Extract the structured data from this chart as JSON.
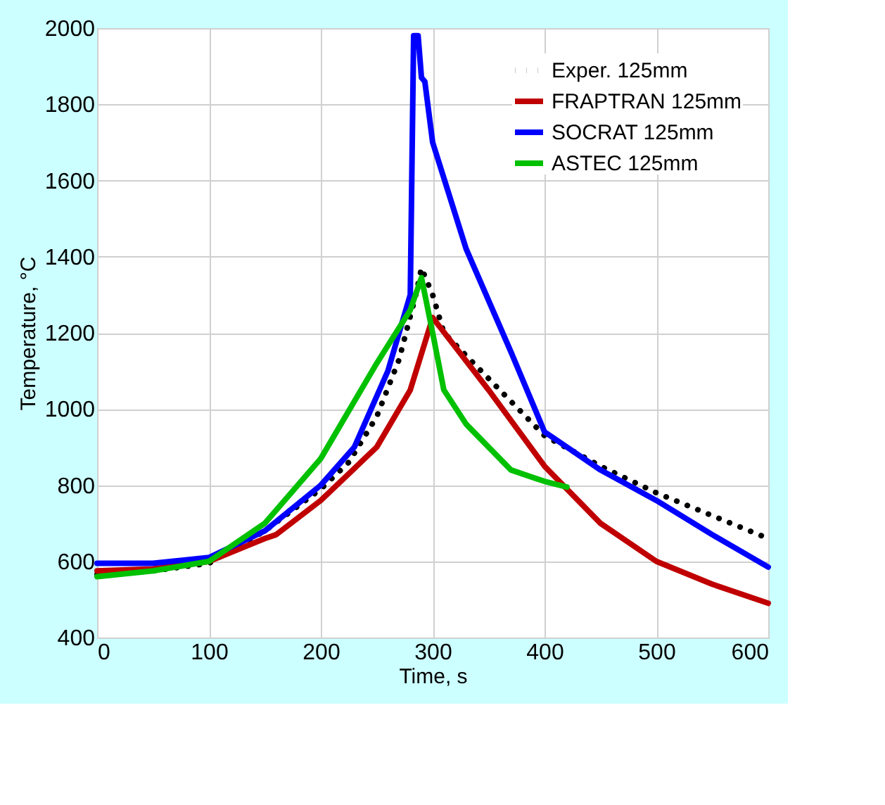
{
  "chart_data": {
    "type": "line",
    "xlabel": "Time, s",
    "ylabel": "Temperature, °C",
    "xlim": [
      0,
      600
    ],
    "ylim": [
      400,
      2000
    ],
    "xticks": [
      0,
      100,
      200,
      300,
      400,
      500,
      600
    ],
    "yticks": [
      400,
      600,
      800,
      1000,
      1200,
      1400,
      1600,
      1800,
      2000
    ],
    "grid": true,
    "legend": "top right",
    "series": [
      {
        "name": "Exper. 125mm",
        "color": "#000000",
        "line_style": "dotted",
        "x": [
          0,
          50,
          100,
          150,
          200,
          225,
          250,
          270,
          285,
          290,
          300,
          310,
          350,
          400,
          450,
          500,
          550,
          600
        ],
        "values": [
          565,
          575,
          595,
          680,
          790,
          860,
          980,
          1130,
          1300,
          1370,
          1300,
          1200,
          1080,
          930,
          850,
          780,
          720,
          660
        ]
      },
      {
        "name": "FRAPTRAN 125mm",
        "color": "#c00000",
        "line_style": "solid",
        "x": [
          0,
          50,
          100,
          150,
          160,
          200,
          250,
          280,
          300,
          350,
          400,
          450,
          500,
          550,
          600
        ],
        "values": [
          575,
          580,
          600,
          660,
          670,
          760,
          900,
          1050,
          1240,
          1050,
          850,
          700,
          600,
          540,
          490
        ]
      },
      {
        "name": "SOCRAT 125mm",
        "color": "#0000ff",
        "line_style": "solid",
        "x": [
          0,
          50,
          100,
          150,
          200,
          230,
          260,
          280,
          283,
          287,
          290,
          293,
          300,
          330,
          370,
          400,
          410,
          450,
          500,
          550,
          600
        ],
        "values": [
          595,
          595,
          610,
          680,
          800,
          900,
          1100,
          1300,
          1980,
          1980,
          1870,
          1860,
          1700,
          1420,
          1150,
          940,
          920,
          840,
          760,
          670,
          585
        ]
      },
      {
        "name": "ASTEC 125mm",
        "color": "#00c000",
        "line_style": "solid",
        "x": [
          0,
          50,
          100,
          150,
          200,
          250,
          280,
          290,
          300,
          310,
          330,
          370,
          400,
          420
        ],
        "values": [
          560,
          575,
          600,
          700,
          870,
          1120,
          1260,
          1345,
          1200,
          1050,
          960,
          840,
          810,
          795
        ]
      }
    ]
  }
}
